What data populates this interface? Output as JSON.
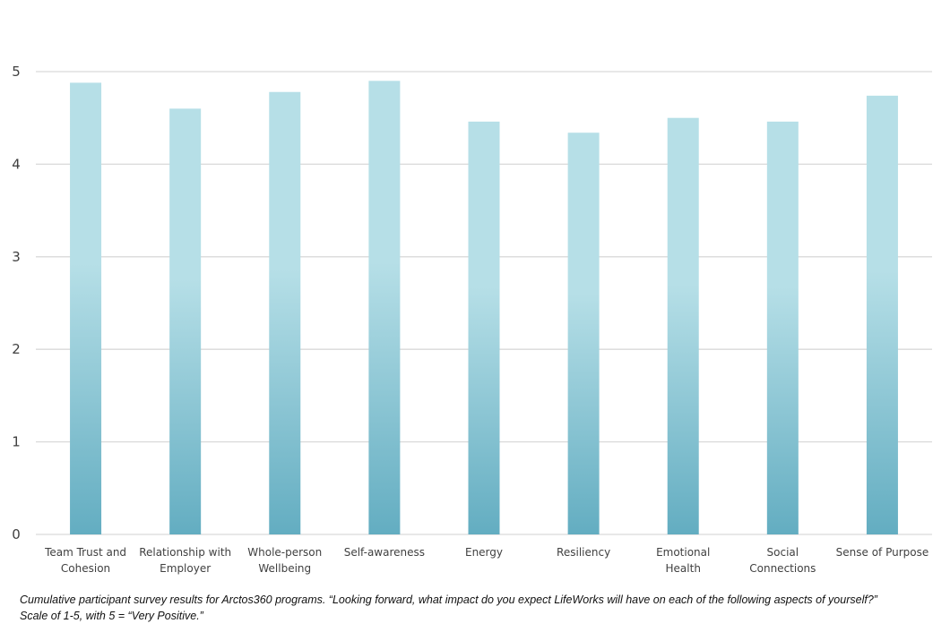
{
  "chart_data": {
    "type": "bar",
    "title": "",
    "xlabel": "",
    "ylabel": "",
    "ylim": [
      0,
      5
    ],
    "yticks": [
      0,
      1,
      2,
      3,
      4,
      5
    ],
    "grid": true,
    "categories": [
      [
        "Team Trust and",
        "Cohesion"
      ],
      [
        "Relationship with",
        "Employer"
      ],
      [
        "Whole-person",
        "Wellbeing"
      ],
      [
        "Self-awareness"
      ],
      [
        "Energy"
      ],
      [
        "Resiliency"
      ],
      [
        "Emotional",
        "Health"
      ],
      [
        "Social",
        "Connections"
      ],
      [
        "Sense of Purpose"
      ]
    ],
    "values": [
      4.88,
      4.6,
      4.78,
      4.9,
      4.46,
      4.34,
      4.5,
      4.46,
      4.74
    ],
    "colors": {
      "bar_top": "#b6dfe7",
      "bar_bottom": "#63adc1",
      "grid": "#d9d9d9",
      "axis": "#d9d9d9"
    }
  },
  "caption": {
    "line1": "Cumulative participant survey results for Arctos360 programs. “Looking forward, what impact do you expect LifeWorks will have on each of the following aspects of yourself?”",
    "line2": "Scale of 1-5, with 5 = “Very Positive.”"
  }
}
